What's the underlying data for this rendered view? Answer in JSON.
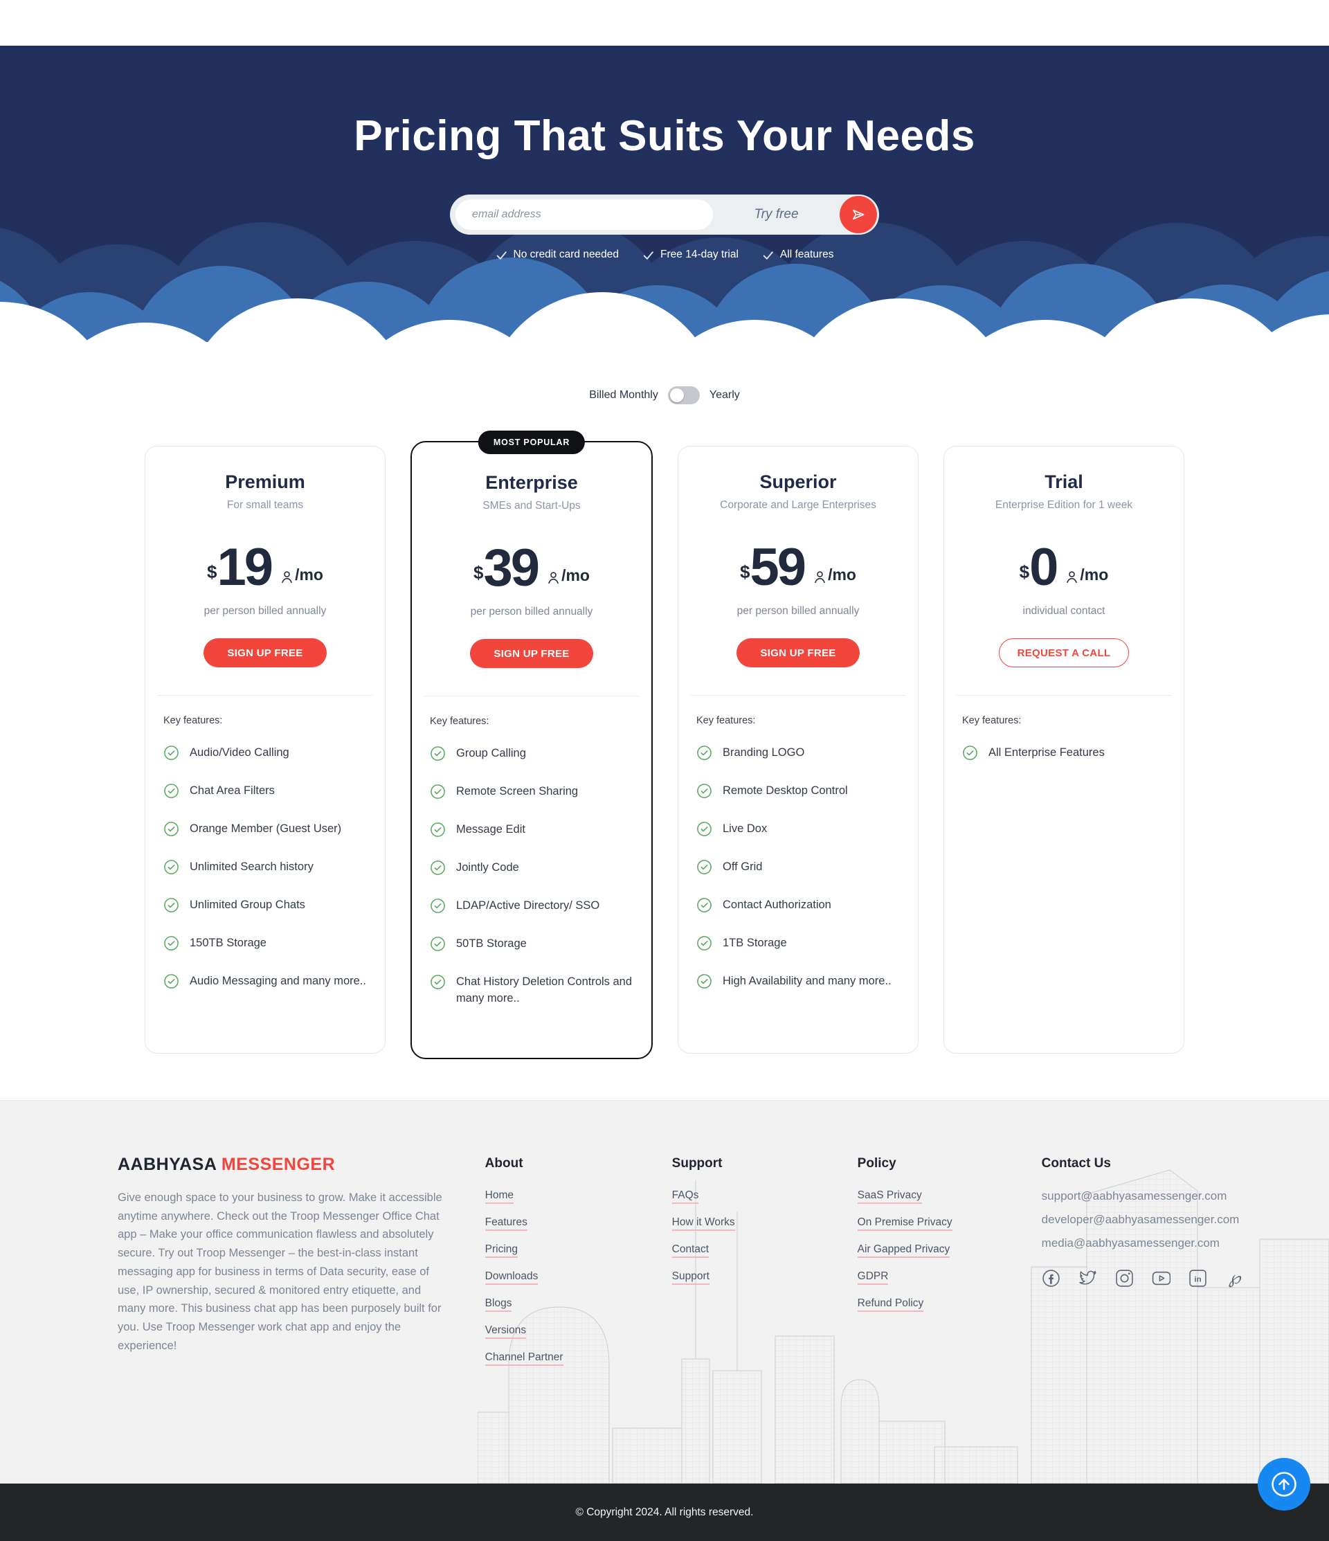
{
  "hero": {
    "title": "Pricing That Suits Your Needs",
    "email_placeholder": "email address",
    "try_free_label": "Try free",
    "benefits": [
      "No credit card needed",
      "Free 14-day trial",
      "All features"
    ]
  },
  "billing": {
    "monthly_label": "Billed Monthly",
    "yearly_label": "Yearly",
    "state": "monthly"
  },
  "plans": [
    {
      "name": "Premium",
      "subtitle": "For small teams",
      "badge": "",
      "currency": "$",
      "price": "19",
      "period": "/mo",
      "billing_note": "per person billed annually",
      "cta": "SIGN UP FREE",
      "cta_style": "solid",
      "features_title": "Key features:",
      "features": [
        "Audio/Video Calling",
        "Chat Area Filters",
        "Orange Member (Guest User)",
        "Unlimited Search history",
        "Unlimited Group Chats",
        "150TB Storage",
        "Audio Messaging and many more.."
      ]
    },
    {
      "name": "Enterprise",
      "subtitle": "SMEs and Start-Ups",
      "badge": "MOST POPULAR",
      "currency": "$",
      "price": "39",
      "period": "/mo",
      "billing_note": "per person billed annually",
      "cta": "SIGN UP FREE",
      "cta_style": "solid",
      "features_title": "Key features:",
      "features": [
        "Group Calling",
        "Remote Screen Sharing",
        "Message Edit",
        "Jointly Code",
        "LDAP/Active Directory/ SSO",
        "50TB Storage",
        "Chat History Deletion Controls and many more.."
      ]
    },
    {
      "name": "Superior",
      "subtitle": "Corporate and Large Enterprises",
      "badge": "",
      "currency": "$",
      "price": "59",
      "period": "/mo",
      "billing_note": "per person billed annually",
      "cta": "SIGN UP FREE",
      "cta_style": "solid",
      "features_title": "Key features:",
      "features": [
        "Branding LOGO",
        "Remote Desktop Control",
        "Live Dox",
        "Off Grid",
        "Contact Authorization",
        "1TB Storage",
        "High Availability and many more.."
      ]
    },
    {
      "name": "Trial",
      "subtitle": "Enterprise Edition for 1 week",
      "badge": "",
      "currency": "$",
      "price": "0",
      "period": "/mo",
      "billing_note": "individual contact",
      "cta": "REQUEST A CALL",
      "cta_style": "outline",
      "features_title": "Key features:",
      "features": [
        "All Enterprise Features"
      ]
    }
  ],
  "footer": {
    "brand": {
      "name_primary": "AABHYASA",
      "name_accent": "MESSENGER",
      "description": "Give enough space to your business to grow. Make it accessible anytime anywhere. Check out the Troop Messenger Office Chat app – Make your office communication flawless and absolutely secure. Try out Troop Messenger – the best-in-class instant messaging app for business in terms of Data security, ease of use, IP ownership, secured & monitored entry etiquette, and many more. This business chat app has been purposely built for you. Use Troop Messenger work chat app and enjoy the experience!"
    },
    "columns": [
      {
        "title": "About",
        "links": [
          "Home",
          "Features",
          "Pricing",
          "Downloads",
          "Blogs",
          "Versions",
          "Channel Partner"
        ]
      },
      {
        "title": "Support",
        "links": [
          "FAQs",
          "How it Works",
          "Contact",
          "Support"
        ]
      },
      {
        "title": "Policy",
        "links": [
          "SaaS Privacy",
          "On Premise Privacy",
          "Air Gapped Privacy",
          "GDPR",
          "Refund Policy"
        ]
      }
    ],
    "contact": {
      "title": "Contact Us",
      "emails": [
        "support@aabhyasamessenger.com",
        "developer@aabhyasamessenger.com",
        "media@aabhyasamessenger.com"
      ],
      "social": [
        "facebook",
        "twitter",
        "instagram",
        "youtube",
        "linkedin",
        "pinterest"
      ]
    },
    "copyright": "© Copyright 2024. All rights reserved."
  },
  "icons": {
    "submit": "send-icon",
    "benefit": "check-icon",
    "feature": "check-circle-icon",
    "per_person": "person-icon",
    "scroll_top": "arrow-up-icon"
  },
  "colors": {
    "hero_navy": "#22305E",
    "cloud_mid": "#2A4173",
    "cloud_blue": "#3C71B3",
    "accent_red": "#F2463D",
    "feature_green": "#5CA862",
    "footer_bg": "#F2F2F3",
    "copyright_bg": "#232527",
    "scroll_button_blue": "#1787F2",
    "link_underline": "#F3B6BD"
  }
}
